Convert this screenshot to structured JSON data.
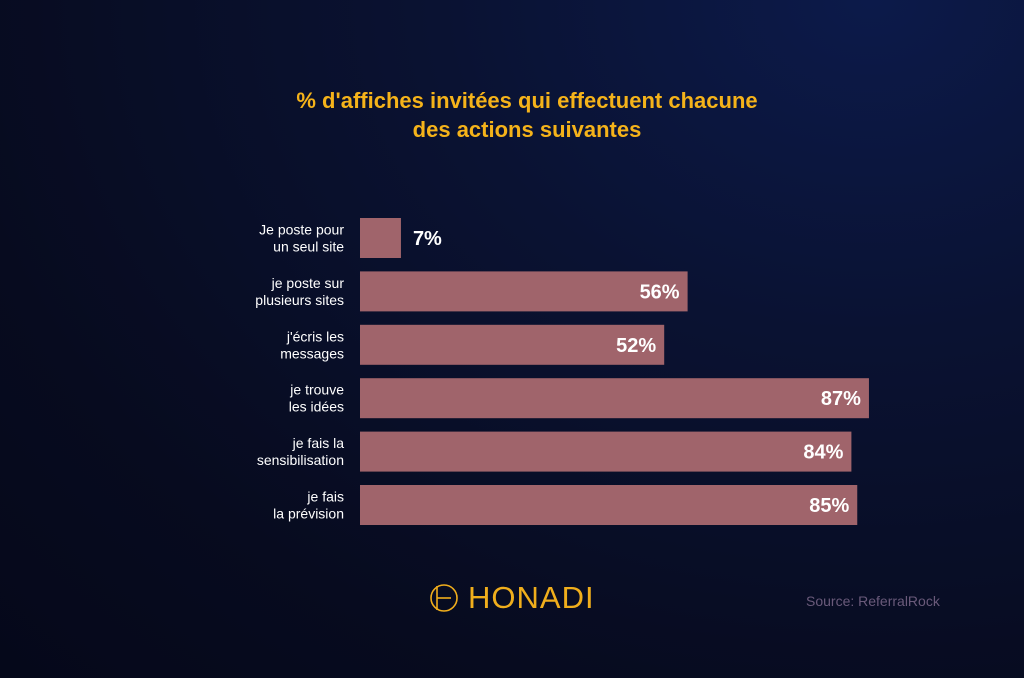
{
  "chart_data": {
    "type": "bar",
    "orientation": "horizontal",
    "title_lines": [
      "% d'affiches invitées qui effectuent chacune",
      "des actions suivantes"
    ],
    "categories": [
      [
        "Je poste pour",
        "un seul site"
      ],
      [
        "je poste sur",
        "plusieurs sites"
      ],
      [
        "j'écris les",
        "messages"
      ],
      [
        "je trouve",
        "les idées"
      ],
      [
        "je fais la",
        "sensibilisation"
      ],
      [
        "je fais",
        "la prévision"
      ]
    ],
    "values": [
      7,
      56,
      52,
      87,
      84,
      85
    ],
    "value_labels": [
      "7%",
      "56%",
      "52%",
      "87%",
      "84%",
      "85%"
    ],
    "xlim": [
      0,
      100
    ],
    "grid": false,
    "legend": "none",
    "bar_color": "#a0646b",
    "label_color": "#ffffff"
  },
  "brand": {
    "name": "HONADI",
    "color": "#f0ae1c"
  },
  "source": "Source: ReferralRock",
  "colors": {
    "title": "#f5b31a",
    "background": "#070b1f"
  }
}
